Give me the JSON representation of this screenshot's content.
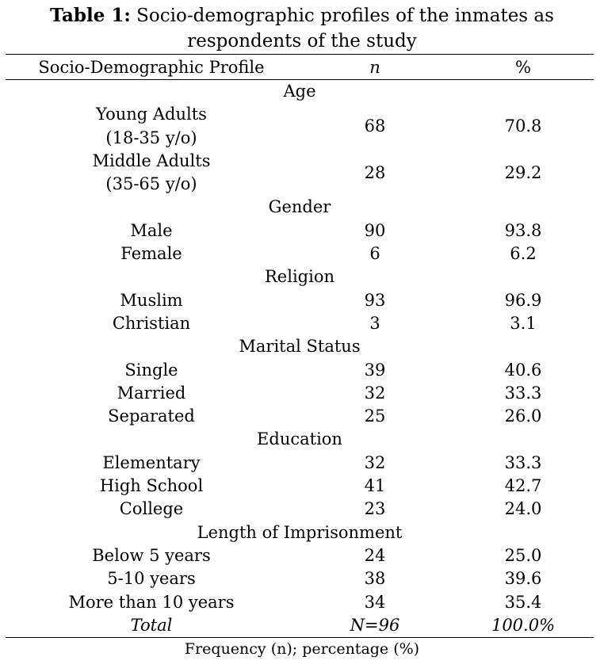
{
  "caption": {
    "label": "Table 1:",
    "text": "Socio-demographic profiles of the inmates as respondents of the study",
    "line1": "Socio-demographic profiles of the inmates as",
    "line2": "respondents of the study"
  },
  "table": {
    "headers": {
      "profile": "Socio-Demographic Profile",
      "n": "n",
      "percent": "%"
    },
    "sections": [
      {
        "title": "Age",
        "rows": [
          {
            "line1": "Young Adults",
            "line2": "(18-35 y/o)",
            "n": "68",
            "percent": "70.8"
          },
          {
            "line1": "Middle Adults",
            "line2": "(35-65 y/o)",
            "n": "28",
            "percent": "29.2"
          }
        ]
      },
      {
        "title": "Gender",
        "rows": [
          {
            "label": "Male",
            "n": "90",
            "percent": "93.8"
          },
          {
            "label": "Female",
            "n": "6",
            "percent": "6.2"
          }
        ]
      },
      {
        "title": "Religion",
        "rows": [
          {
            "label": "Muslim",
            "n": "93",
            "percent": "96.9"
          },
          {
            "label": "Christian",
            "n": "3",
            "percent": "3.1"
          }
        ]
      },
      {
        "title": "Marital Status",
        "rows": [
          {
            "label": "Single",
            "n": "39",
            "percent": "40.6"
          },
          {
            "label": "Married",
            "n": "32",
            "percent": "33.3"
          },
          {
            "label": "Separated",
            "n": "25",
            "percent": "26.0"
          }
        ]
      },
      {
        "title": "Education",
        "rows": [
          {
            "label": "Elementary",
            "n": "32",
            "percent": "33.3"
          },
          {
            "label": "High School",
            "n": "41",
            "percent": "42.7"
          },
          {
            "label": "College",
            "n": "23",
            "percent": "24.0"
          }
        ]
      },
      {
        "title": "Length of Imprisonment",
        "rows": [
          {
            "label": "Below 5 years",
            "n": "24",
            "percent": "25.0"
          },
          {
            "label": "5-10 years",
            "n": "38",
            "percent": "39.6"
          },
          {
            "label": "More than 10 years",
            "n": "34",
            "percent": "35.4"
          }
        ]
      }
    ],
    "total": {
      "label": "Total",
      "n": "N=96",
      "percent": "100.0%"
    }
  },
  "footnote": "Frequency (n); percentage (%)"
}
